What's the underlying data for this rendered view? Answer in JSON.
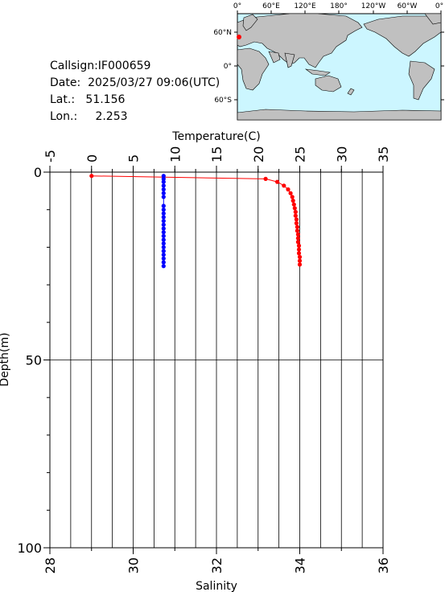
{
  "station": {
    "callsign_label": "Callsign:",
    "callsign": "IF000659",
    "date_label": "Date:",
    "date": "2025/03/27 09:06(UTC)",
    "lat_label": "Lat.:",
    "lat": "51.156",
    "lon_label": "Lon.:",
    "lon": "2.253"
  },
  "map": {
    "top_labels": [
      "0°",
      "60°E",
      "120°E",
      "180°",
      "120°W",
      "60°W",
      "0°"
    ],
    "left_labels": [
      "60°N",
      "0°",
      "60°S"
    ],
    "ocean_color": "#ccf6ff",
    "land_color": "#c0c0c0",
    "marker_color": "#ff0000"
  },
  "chart_data": {
    "type": "line",
    "top_axis": {
      "label": "Temperature(C)",
      "range": [
        -5,
        35
      ],
      "ticks": [
        -5,
        0,
        5,
        10,
        15,
        20,
        25,
        30,
        35
      ]
    },
    "bottom_axis": {
      "label": "Salinity",
      "range": [
        28,
        36
      ],
      "ticks": [
        28,
        30,
        32,
        34,
        36
      ]
    },
    "y_axis": {
      "label": "Depth(m)",
      "range": [
        0,
        100
      ],
      "reversed": true,
      "ticks": [
        0,
        50,
        100
      ]
    },
    "grid": true,
    "series": [
      {
        "color": "#ff0000",
        "axis": "top",
        "points": [
          [
            0.0,
            1.0
          ],
          [
            20.9,
            1.8
          ],
          [
            22.3,
            2.6
          ],
          [
            23.1,
            3.6
          ],
          [
            23.6,
            4.6
          ],
          [
            23.9,
            5.6
          ],
          [
            24.1,
            6.6
          ],
          [
            24.2,
            7.6
          ],
          [
            24.3,
            8.6
          ],
          [
            24.4,
            9.6
          ],
          [
            24.5,
            10.6
          ],
          [
            24.5,
            11.6
          ],
          [
            24.6,
            12.6
          ],
          [
            24.6,
            13.6
          ],
          [
            24.7,
            14.6
          ],
          [
            24.7,
            15.6
          ],
          [
            24.8,
            16.6
          ],
          [
            24.8,
            17.6
          ],
          [
            24.8,
            18.6
          ],
          [
            24.9,
            19.6
          ],
          [
            24.9,
            20.6
          ],
          [
            24.9,
            21.6
          ],
          [
            25.0,
            22.6
          ],
          [
            25.0,
            23.6
          ],
          [
            25.0,
            24.6
          ]
        ]
      },
      {
        "color": "#0000ff",
        "axis": "bottom",
        "points": [
          [
            30.73,
            1.0
          ],
          [
            30.73,
            1.8
          ],
          [
            30.73,
            2.6
          ],
          [
            30.73,
            3.6
          ],
          [
            30.73,
            4.6
          ],
          [
            30.73,
            5.6
          ],
          [
            30.73,
            6.6
          ],
          [
            30.73,
            9.0
          ],
          [
            30.73,
            10.0
          ],
          [
            30.73,
            11.0
          ],
          [
            30.73,
            12.0
          ],
          [
            30.73,
            13.0
          ],
          [
            30.73,
            14.0
          ],
          [
            30.73,
            15.0
          ],
          [
            30.73,
            16.0
          ],
          [
            30.73,
            17.0
          ],
          [
            30.73,
            18.0
          ],
          [
            30.73,
            19.0
          ],
          [
            30.73,
            20.0
          ],
          [
            30.73,
            21.0
          ],
          [
            30.73,
            22.0
          ],
          [
            30.73,
            23.0
          ],
          [
            30.73,
            24.0
          ],
          [
            30.73,
            25.0
          ]
        ]
      }
    ]
  }
}
